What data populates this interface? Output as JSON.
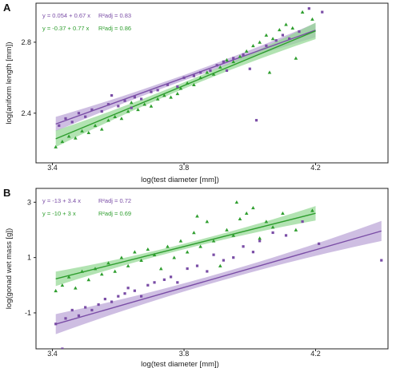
{
  "chart_data": [
    {
      "panel": "A",
      "type": "scatter",
      "xlabel": "log(test diameter [mm])",
      "ylabel": "log(aniform length [mm])",
      "xlim": [
        3.35,
        4.42
      ],
      "ylim": [
        2.12,
        3.02
      ],
      "xticks": [
        "3.4",
        "3.8",
        "4.2"
      ],
      "yticks": [
        "2.4",
        "2.8"
      ],
      "colors": {
        "purple": "#7a4da6",
        "green": "#2e9e2e",
        "purple_band": "#b9a2d6",
        "green_band": "#92d792"
      },
      "series": [
        {
          "equation": "y = 0.054 + 0.67 x",
          "r2_label": "R²adj = 0.83",
          "color": "#7a4da6",
          "marker": "square",
          "fit": {
            "intercept": 0.054,
            "slope": 0.67,
            "x_range": [
              3.41,
              4.2
            ],
            "band": 0.028
          },
          "points": [
            [
              3.42,
              2.33
            ],
            [
              3.44,
              2.37
            ],
            [
              3.46,
              2.35
            ],
            [
              3.48,
              2.4
            ],
            [
              3.5,
              2.38
            ],
            [
              3.52,
              2.42
            ],
            [
              3.55,
              2.41
            ],
            [
              3.57,
              2.45
            ],
            [
              3.6,
              2.44
            ],
            [
              3.62,
              2.47
            ],
            [
              3.65,
              2.49
            ],
            [
              3.67,
              2.48
            ],
            [
              3.7,
              2.52
            ],
            [
              3.72,
              2.53
            ],
            [
              3.75,
              2.56
            ],
            [
              3.78,
              2.55
            ],
            [
              3.8,
              2.6
            ],
            [
              3.83,
              2.61
            ],
            [
              3.85,
              2.63
            ],
            [
              3.88,
              2.64
            ],
            [
              3.9,
              2.67
            ],
            [
              3.92,
              2.69
            ],
            [
              3.95,
              2.71
            ],
            [
              3.98,
              2.73
            ],
            [
              4.0,
              2.65
            ],
            [
              4.02,
              2.36
            ],
            [
              4.05,
              2.78
            ],
            [
              4.08,
              2.81
            ],
            [
              4.1,
              2.84
            ],
            [
              4.15,
              2.86
            ],
            [
              4.18,
              2.99
            ],
            [
              4.22,
              2.97
            ],
            [
              3.58,
              2.5
            ],
            [
              3.64,
              2.43
            ],
            [
              3.93,
              2.64
            ],
            [
              4.12,
              2.82
            ]
          ]
        },
        {
          "equation": "y = -0.37 + 0.77 x",
          "r2_label": "R²adj = 0.86",
          "color": "#2e9e2e",
          "marker": "triangle",
          "fit": {
            "intercept": -0.37,
            "slope": 0.77,
            "x_range": [
              3.41,
              4.2
            ],
            "band": 0.032
          },
          "points": [
            [
              3.41,
              2.21
            ],
            [
              3.43,
              2.24
            ],
            [
              3.45,
              2.27
            ],
            [
              3.47,
              2.26
            ],
            [
              3.49,
              2.3
            ],
            [
              3.51,
              2.29
            ],
            [
              3.53,
              2.33
            ],
            [
              3.55,
              2.31
            ],
            [
              3.57,
              2.36
            ],
            [
              3.59,
              2.38
            ],
            [
              3.61,
              2.37
            ],
            [
              3.63,
              2.41
            ],
            [
              3.66,
              2.42
            ],
            [
              3.68,
              2.45
            ],
            [
              3.7,
              2.44
            ],
            [
              3.72,
              2.48
            ],
            [
              3.74,
              2.5
            ],
            [
              3.76,
              2.49
            ],
            [
              3.79,
              2.54
            ],
            [
              3.81,
              2.57
            ],
            [
              3.83,
              2.56
            ],
            [
              3.85,
              2.6
            ],
            [
              3.87,
              2.63
            ],
            [
              3.89,
              2.62
            ],
            [
              3.91,
              2.66
            ],
            [
              3.93,
              2.7
            ],
            [
              3.95,
              2.69
            ],
            [
              3.97,
              2.72
            ],
            [
              3.99,
              2.75
            ],
            [
              4.01,
              2.78
            ],
            [
              4.03,
              2.8
            ],
            [
              4.05,
              2.84
            ],
            [
              4.07,
              2.82
            ],
            [
              4.09,
              2.87
            ],
            [
              4.11,
              2.9
            ],
            [
              4.13,
              2.88
            ],
            [
              4.16,
              2.97
            ],
            [
              4.19,
              2.93
            ],
            [
              3.64,
              2.46
            ],
            [
              3.78,
              2.51
            ],
            [
              4.06,
              2.63
            ],
            [
              4.14,
              2.71
            ]
          ]
        }
      ]
    },
    {
      "panel": "B",
      "type": "scatter",
      "xlabel": "log(test diameter [mm])",
      "ylabel": "log(gonad wet mass [g])",
      "xlim": [
        3.35,
        4.42
      ],
      "ylim": [
        -2.3,
        3.5
      ],
      "xticks": [
        "3.4",
        "3.8",
        "4.2"
      ],
      "yticks": [
        "-1",
        "1",
        "3"
      ],
      "colors": {
        "purple": "#7a4da6",
        "green": "#2e9e2e",
        "purple_band": "#b9a2d6",
        "green_band": "#92d792"
      },
      "series": [
        {
          "equation": "y = -13 + 3.4 x",
          "r2_label": "R²adj = 0.72",
          "color": "#7a4da6",
          "marker": "square",
          "fit": {
            "intercept": -13.0,
            "slope": 3.4,
            "x_range": [
              3.41,
              4.4
            ],
            "band": 0.25
          },
          "points": [
            [
              3.41,
              -1.4
            ],
            [
              3.44,
              -1.2
            ],
            [
              3.46,
              -0.9
            ],
            [
              3.48,
              -1.1
            ],
            [
              3.5,
              -0.8
            ],
            [
              3.52,
              -0.9
            ],
            [
              3.54,
              -0.7
            ],
            [
              3.56,
              -0.5
            ],
            [
              3.58,
              -0.6
            ],
            [
              3.6,
              -0.4
            ],
            [
              3.62,
              -0.3
            ],
            [
              3.65,
              -0.2
            ],
            [
              3.67,
              -0.4
            ],
            [
              3.69,
              0.0
            ],
            [
              3.71,
              0.1
            ],
            [
              3.74,
              0.2
            ],
            [
              3.76,
              0.3
            ],
            [
              3.78,
              0.1
            ],
            [
              3.81,
              0.6
            ],
            [
              3.84,
              0.7
            ],
            [
              3.87,
              0.5
            ],
            [
              3.89,
              1.1
            ],
            [
              3.92,
              0.9
            ],
            [
              3.95,
              1.0
            ],
            [
              3.98,
              1.4
            ],
            [
              4.01,
              1.2
            ],
            [
              4.03,
              1.6
            ],
            [
              4.07,
              1.9
            ],
            [
              4.11,
              1.8
            ],
            [
              4.16,
              2.3
            ],
            [
              4.21,
              1.5
            ],
            [
              4.4,
              0.9
            ],
            [
              3.43,
              -2.3
            ],
            [
              3.63,
              -0.1
            ]
          ]
        },
        {
          "equation": "y = -10 + 3 x",
          "r2_label": "R²adj = 0.69",
          "color": "#2e9e2e",
          "marker": "triangle",
          "fit": {
            "intercept": -10.0,
            "slope": 3.0,
            "x_range": [
              3.41,
              4.2
            ],
            "band": 0.18
          },
          "points": [
            [
              3.41,
              -0.2
            ],
            [
              3.43,
              0.0
            ],
            [
              3.45,
              0.3
            ],
            [
              3.47,
              -0.1
            ],
            [
              3.49,
              0.5
            ],
            [
              3.51,
              0.2
            ],
            [
              3.53,
              0.6
            ],
            [
              3.55,
              0.4
            ],
            [
              3.57,
              0.8
            ],
            [
              3.59,
              0.5
            ],
            [
              3.61,
              1.0
            ],
            [
              3.63,
              0.7
            ],
            [
              3.65,
              1.2
            ],
            [
              3.67,
              0.9
            ],
            [
              3.69,
              1.3
            ],
            [
              3.71,
              1.1
            ],
            [
              3.73,
              0.6
            ],
            [
              3.75,
              1.4
            ],
            [
              3.77,
              1.0
            ],
            [
              3.79,
              1.6
            ],
            [
              3.81,
              1.2
            ],
            [
              3.83,
              1.9
            ],
            [
              3.85,
              1.4
            ],
            [
              3.87,
              2.3
            ],
            [
              3.89,
              1.6
            ],
            [
              3.91,
              0.7
            ],
            [
              3.93,
              2.0
            ],
            [
              3.95,
              1.8
            ],
            [
              3.97,
              2.4
            ],
            [
              3.99,
              2.6
            ],
            [
              4.01,
              2.8
            ],
            [
              4.03,
              1.7
            ],
            [
              4.05,
              2.3
            ],
            [
              4.07,
              2.1
            ],
            [
              4.1,
              2.6
            ],
            [
              4.14,
              2.0
            ],
            [
              4.19,
              2.7
            ],
            [
              3.84,
              2.5
            ],
            [
              3.96,
              3.0
            ]
          ]
        }
      ]
    }
  ]
}
